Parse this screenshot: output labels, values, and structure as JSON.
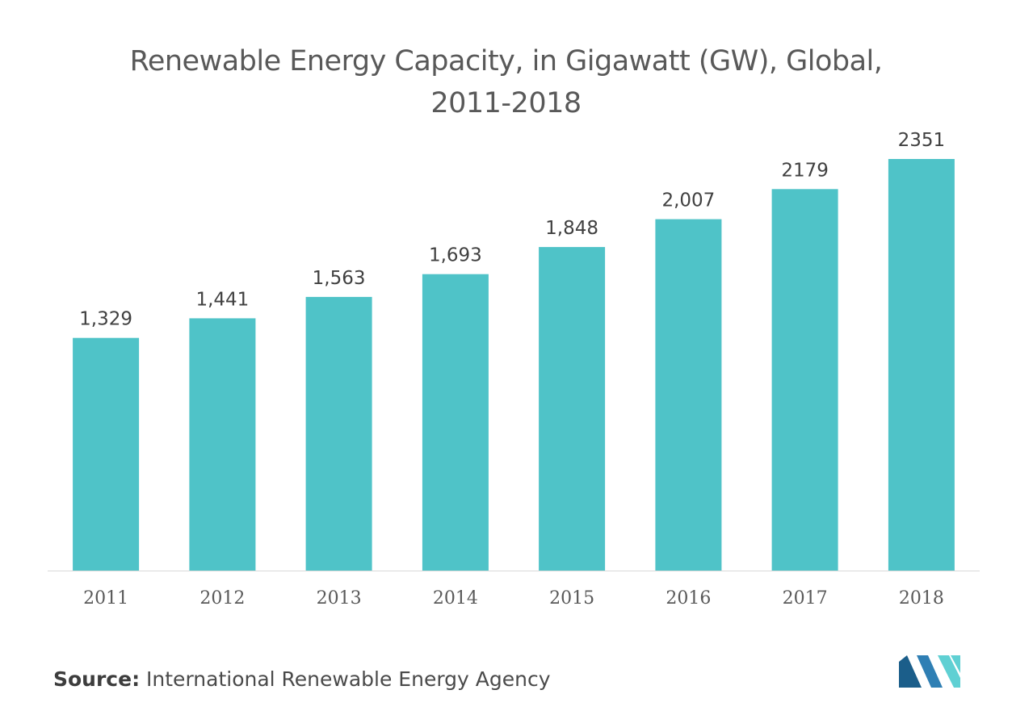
{
  "chart_data": {
    "type": "bar",
    "title_line1": "Renewable Energy Capacity, in Gigawatt (GW), Global,",
    "title_line2": "2011-2018",
    "categories": [
      "2011",
      "2012",
      "2013",
      "2014",
      "2015",
      "2016",
      "2017",
      "2018"
    ],
    "values": [
      1329,
      1441,
      1563,
      1693,
      1848,
      2007,
      2179,
      2351
    ],
    "value_labels": [
      "1,329",
      "1,441",
      "1,563",
      "1,693",
      "1,848",
      "2,007",
      "2179",
      "2351"
    ],
    "bar_color": "#4fc3c8",
    "axis_color": "#d9d9d9",
    "ylim": [
      0,
      2351
    ],
    "grid": false,
    "legend": "none"
  },
  "source": {
    "label": "Source:",
    "text": " International Renewable Energy Agency"
  },
  "logo": {
    "icon": "mordor-intelligence-logo-icon",
    "colors": [
      "#1b5e8a",
      "#2f7fb4",
      "#5fd0d3"
    ]
  }
}
